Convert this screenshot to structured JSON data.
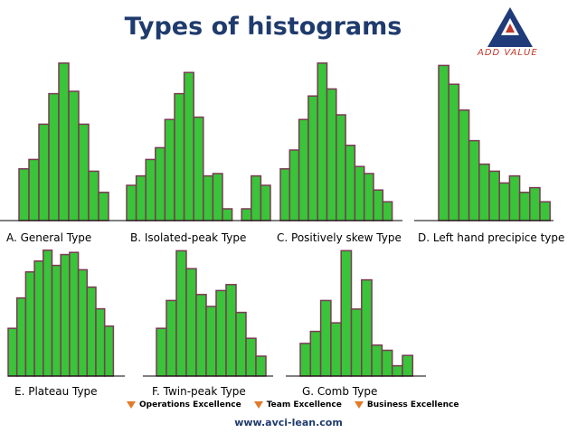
{
  "title": "Types of histograms",
  "logo": {
    "text": "ADD VALUE",
    "colors": {
      "blue": "#1f3b7a",
      "red": "#c0392b",
      "white": "#ffffff"
    }
  },
  "colors": {
    "bar_fill": "#39c439",
    "bar_stroke": "#7b3a55",
    "axis": "#000000"
  },
  "chart_data": [
    {
      "type": "bar",
      "caption": "A.   General Type",
      "grid": false,
      "values": [
        2.2,
        2.6,
        4.1,
        5.4,
        6.7,
        5.5,
        4.1,
        2.1,
        1.2
      ],
      "ylim": [
        0,
        7
      ]
    },
    {
      "type": "bar",
      "caption": "B. Isolated-peak Type",
      "grid": false,
      "values": [
        1.5,
        1.9,
        2.6,
        3.1,
        4.3,
        5.4,
        6.3,
        4.4,
        1.9,
        2.0,
        0.5,
        0,
        0.5,
        1.9,
        1.5
      ],
      "ylim": [
        0,
        7
      ]
    },
    {
      "type": "bar",
      "caption": "C. Positively skew Type",
      "grid": false,
      "values": [
        2.2,
        3.0,
        4.3,
        5.3,
        6.7,
        5.6,
        4.5,
        3.2,
        2.3,
        2.0,
        1.3,
        0.8
      ],
      "ylim": [
        0,
        7
      ]
    },
    {
      "type": "bar",
      "caption": "D. Left hand precipice type",
      "grid": false,
      "values": [
        6.6,
        5.8,
        4.7,
        3.4,
        2.4,
        2.1,
        1.6,
        1.9,
        1.2,
        1.4,
        0.8
      ],
      "ylim": [
        0,
        7
      ]
    },
    {
      "type": "bar",
      "caption": "E. Plateau Type",
      "grid": false,
      "values": [
        2.2,
        3.6,
        4.8,
        5.3,
        5.8,
        5.1,
        5.6,
        5.7,
        4.9,
        4.1,
        3.1,
        2.3
      ],
      "ylim": [
        0,
        7
      ]
    },
    {
      "type": "bar",
      "caption": "F. Twin-peak Type",
      "grid": false,
      "values": [
        2.4,
        3.8,
        6.3,
        5.4,
        4.1,
        3.5,
        4.3,
        4.6,
        3.2,
        1.9,
        1.0
      ],
      "ylim": [
        0,
        7
      ]
    },
    {
      "type": "bar",
      "caption": "G. Comb Type",
      "grid": false,
      "values": [
        1.9,
        2.6,
        4.4,
        3.1,
        7.3,
        3.9,
        5.6,
        1.8,
        1.5,
        0.6,
        1.2
      ],
      "ylim": [
        0,
        7
      ]
    }
  ],
  "footer": {
    "items": [
      "Operations Excellence",
      "Team Excellence",
      "Business Excellence"
    ],
    "website": "www.avci-lean.com"
  }
}
